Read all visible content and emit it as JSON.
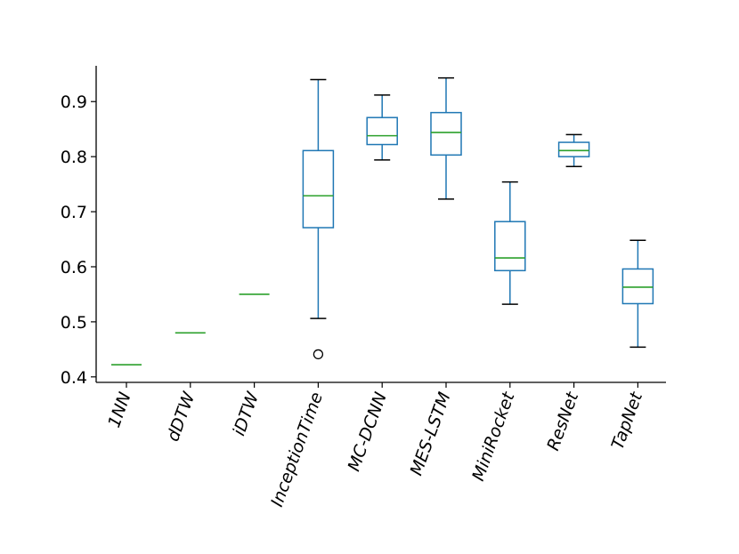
{
  "chart_data": {
    "type": "boxplot",
    "title": "",
    "xlabel": "",
    "ylabel": "",
    "ylim": [
      0.39,
      0.965
    ],
    "yticks": [
      0.4,
      0.5,
      0.6,
      0.7,
      0.8,
      0.9
    ],
    "ytick_labels": [
      "0.4",
      "0.5",
      "0.6",
      "0.7",
      "0.8",
      "0.9"
    ],
    "categories": [
      "1NN",
      "dDTW",
      "iDTW",
      "InceptionTime",
      "MC-DCNN",
      "MES-LSTM",
      "MiniRocket",
      "ResNet",
      "TapNet"
    ],
    "boxes": [
      {
        "name": "1NN",
        "min": 0.422,
        "q1": 0.422,
        "median": 0.422,
        "q3": 0.422,
        "max": 0.422,
        "outliers": []
      },
      {
        "name": "dDTW",
        "min": 0.48,
        "q1": 0.48,
        "median": 0.48,
        "q3": 0.48,
        "max": 0.48,
        "outliers": []
      },
      {
        "name": "iDTW",
        "min": 0.55,
        "q1": 0.55,
        "median": 0.55,
        "q3": 0.55,
        "max": 0.55,
        "outliers": []
      },
      {
        "name": "InceptionTime",
        "min": 0.506,
        "q1": 0.671,
        "median": 0.729,
        "q3": 0.811,
        "max": 0.94,
        "outliers": [
          0.441
        ]
      },
      {
        "name": "MC-DCNN",
        "min": 0.794,
        "q1": 0.822,
        "median": 0.838,
        "q3": 0.871,
        "max": 0.912,
        "outliers": []
      },
      {
        "name": "MES-LSTM",
        "min": 0.723,
        "q1": 0.803,
        "median": 0.844,
        "q3": 0.88,
        "max": 0.943,
        "outliers": []
      },
      {
        "name": "MiniRocket",
        "min": 0.532,
        "q1": 0.593,
        "median": 0.616,
        "q3": 0.682,
        "max": 0.754,
        "outliers": []
      },
      {
        "name": "ResNet",
        "min": 0.782,
        "q1": 0.8,
        "median": 0.811,
        "q3": 0.826,
        "max": 0.84,
        "outliers": []
      },
      {
        "name": "TapNet",
        "min": 0.454,
        "q1": 0.533,
        "median": 0.563,
        "q3": 0.596,
        "max": 0.648,
        "outliers": []
      }
    ],
    "colors": {
      "box": "#1f77b4",
      "median": "#2ca02c",
      "whisker": "#000000",
      "axis": "#000000"
    },
    "grid": false,
    "legend": "none"
  }
}
